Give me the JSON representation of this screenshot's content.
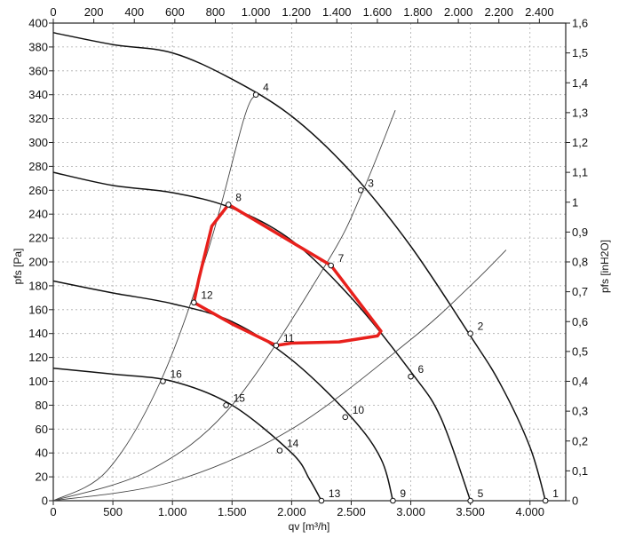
{
  "chart_data": {
    "type": "line",
    "title": "",
    "xlabel": "qv [m³/h]",
    "ylabel_left": "pfs [Pa]",
    "ylabel_right": "pfs [inH2O]",
    "bottom_axis": {
      "range": [
        0,
        4300
      ],
      "ticks": [
        "0",
        "500",
        "1.000",
        "1.500",
        "2.000",
        "2.500",
        "3.000",
        "3.500",
        "4.000"
      ]
    },
    "top_axis": {
      "range": [
        0,
        2530
      ],
      "ticks": [
        "0",
        "200",
        "400",
        "600",
        "800",
        "1.000",
        "1.200",
        "1.400",
        "1.600",
        "1.800",
        "2.000",
        "2.200",
        "2.400"
      ]
    },
    "left_axis": {
      "range": [
        0,
        400
      ],
      "ticks": [
        "0",
        "20",
        "40",
        "60",
        "80",
        "100",
        "120",
        "140",
        "160",
        "180",
        "200",
        "220",
        "240",
        "260",
        "280",
        "300",
        "320",
        "340",
        "360",
        "380",
        "400"
      ]
    },
    "right_axis": {
      "range": [
        0,
        1.6
      ],
      "ticks": [
        "0",
        "0,1",
        "0,2",
        "0,3",
        "0,4",
        "0,5",
        "0,6",
        "0,7",
        "0,8",
        "0,9",
        "1",
        "1,1",
        "1,2",
        "1,3",
        "1,4",
        "1,5",
        "1,6"
      ]
    },
    "grid": true,
    "fan_curves": [
      {
        "x": [
          0,
          500,
          1000,
          1500,
          2000,
          2500,
          3000,
          3500,
          3750,
          4000,
          4130
        ],
        "y": [
          392,
          382,
          375,
          353,
          322,
          275,
          213,
          138,
          98,
          45,
          0
        ]
      },
      {
        "x": [
          0,
          500,
          1000,
          1500,
          2000,
          2500,
          3000,
          3250,
          3500
        ],
        "y": [
          275,
          264,
          258,
          245,
          218,
          170,
          108,
          70,
          0
        ]
      },
      {
        "x": [
          0,
          500,
          1000,
          1500,
          2000,
          2500,
          2750,
          2850
        ],
        "y": [
          184,
          174,
          165,
          150,
          118,
          70,
          35,
          0
        ]
      },
      {
        "x": [
          0,
          500,
          1000,
          1500,
          2000,
          2150,
          2250
        ],
        "y": [
          111,
          106,
          100,
          80,
          40,
          18,
          0
        ]
      }
    ],
    "system_curves": [
      {
        "x": [
          0,
          450,
          900,
          1300,
          1600,
          1700
        ],
        "y": [
          0,
          25,
          100,
          210,
          320,
          340
        ]
      },
      {
        "x": [
          0,
          800,
          1500,
          2300,
          2600,
          2870
        ],
        "y": [
          0,
          25,
          80,
          200,
          260,
          327
        ]
      },
      {
        "x": [
          0,
          1000,
          2000,
          3000,
          3500,
          3800
        ],
        "y": [
          0,
          16,
          60,
          135,
          180,
          210
        ]
      }
    ],
    "marked_points": [
      {
        "label": "1",
        "x": 4130,
        "y": 0
      },
      {
        "label": "2",
        "x": 3500,
        "y": 140
      },
      {
        "label": "3",
        "x": 2580,
        "y": 260
      },
      {
        "label": "4",
        "x": 1700,
        "y": 340
      },
      {
        "label": "5",
        "x": 3500,
        "y": 0
      },
      {
        "label": "6",
        "x": 3000,
        "y": 104
      },
      {
        "label": "7",
        "x": 2330,
        "y": 197
      },
      {
        "label": "8",
        "x": 1470,
        "y": 248
      },
      {
        "label": "9",
        "x": 2850,
        "y": 0
      },
      {
        "label": "10",
        "x": 2450,
        "y": 70
      },
      {
        "label": "11",
        "x": 1870,
        "y": 130
      },
      {
        "label": "12",
        "x": 1180,
        "y": 166
      },
      {
        "label": "13",
        "x": 2250,
        "y": 0
      },
      {
        "label": "14",
        "x": 1900,
        "y": 42
      },
      {
        "label": "15",
        "x": 1450,
        "y": 80
      },
      {
        "label": "16",
        "x": 920,
        "y": 100
      }
    ],
    "annotation": {
      "shape": "closed freehand outline",
      "color": "#e8201c",
      "x": [
        1470,
        2330,
        2750,
        2720,
        2400,
        2000,
        1870,
        1500,
        1180,
        1220,
        1330
      ],
      "y": [
        248,
        197,
        142,
        138,
        133,
        132,
        130,
        148,
        166,
        185,
        230
      ]
    }
  }
}
